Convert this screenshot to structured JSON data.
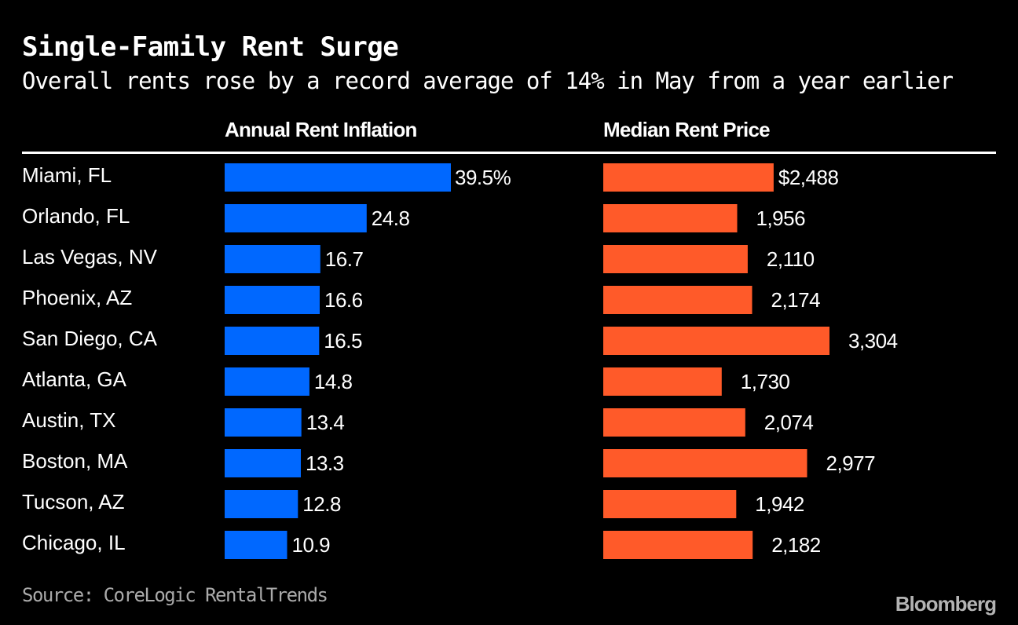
{
  "title": "Single-Family Rent Surge",
  "subtitle": "Overall rents rose by a record average of 14% in May from a year earlier",
  "source": "Source: CoreLogic RentalTrends",
  "brand": "Bloomberg",
  "colors": {
    "inflation": "#0068ff",
    "price": "#ff5a29",
    "background": "#000000",
    "text": "#ffffff"
  },
  "chart_data": {
    "type": "bar",
    "orientation": "horizontal",
    "title": "Single-Family Rent Surge",
    "subtitle": "Overall rents rose by a record average of 14% in May from a year earlier",
    "categories": [
      "Miami, FL",
      "Orlando, FL",
      "Las Vegas, NV",
      "Phoenix, AZ",
      "San Diego, CA",
      "Atlanta, GA",
      "Austin, TX",
      "Boston, MA",
      "Tucson, AZ",
      "Chicago, IL"
    ],
    "series": [
      {
        "name": "Annual Rent Inflation",
        "values": [
          39.5,
          24.8,
          16.7,
          16.6,
          16.5,
          14.8,
          13.4,
          13.3,
          12.8,
          10.9
        ],
        "labels": [
          "39.5%",
          "24.8",
          "16.7",
          "16.6",
          "16.5",
          "14.8",
          "13.4",
          "13.3",
          "12.8",
          "10.9"
        ],
        "max": 39.5
      },
      {
        "name": "Median Rent Price",
        "values": [
          2488,
          1956,
          2110,
          2174,
          3304,
          1730,
          2074,
          2977,
          1942,
          2182
        ],
        "labels": [
          "$2,488",
          "1,956",
          "2,110",
          "2,174",
          "3,304",
          "1,730",
          "2,074",
          "2,977",
          "1,942",
          "2,182"
        ],
        "max": 3304
      }
    ]
  }
}
